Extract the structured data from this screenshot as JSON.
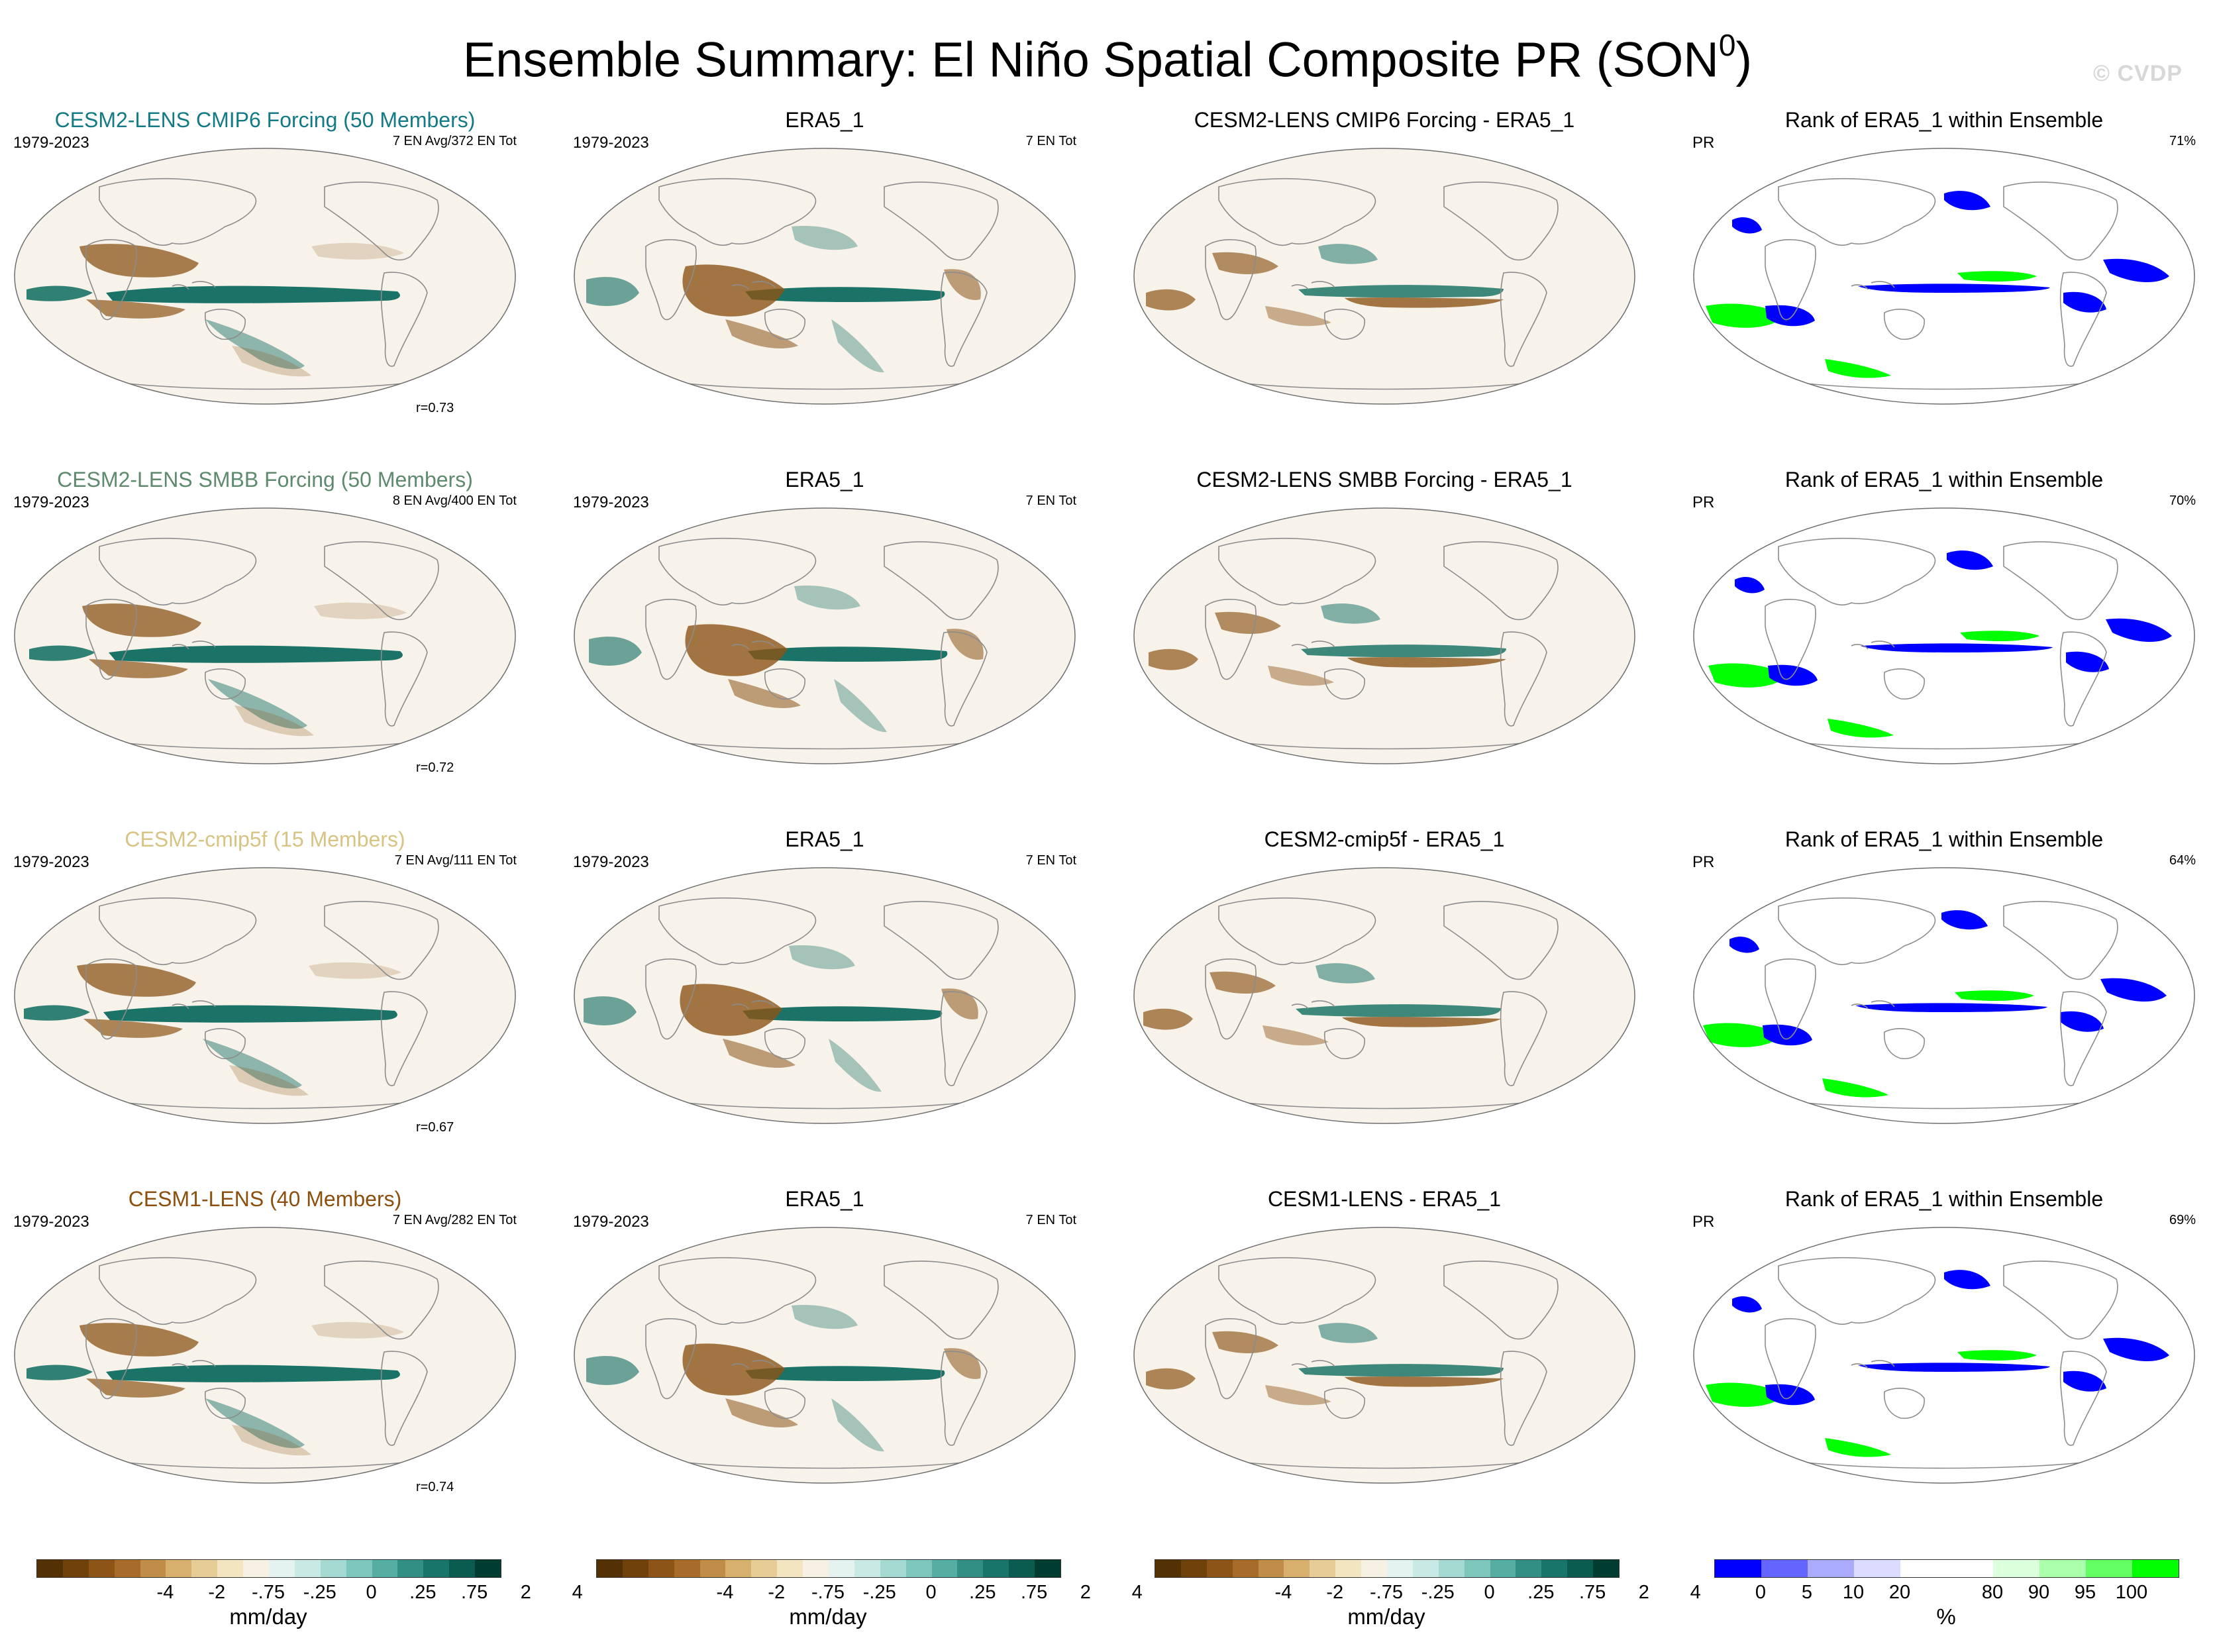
{
  "title": {
    "main": "Ensemble Summary: El Niño Spatial Composite PR (SON",
    "superscript": "0",
    "close": ")"
  },
  "watermark": "© CVDP",
  "rows": [
    {
      "ensemble": {
        "title": "CESM2-LENS CMIP6 Forcing (50 Members)",
        "title_color": "#137a86",
        "years": "1979-2023",
        "en_info": "7 EN Avg/372 EN Tot",
        "correlation": "r=0.73"
      },
      "obs": {
        "title": "ERA5_1",
        "years": "1979-2023",
        "en_info": "7 EN Tot"
      },
      "diff": {
        "title": "CESM2-LENS CMIP6 Forcing - ERA5_1"
      },
      "rank": {
        "title": "Rank of ERA5_1 within Ensemble",
        "variable": "PR",
        "percent": "71%"
      }
    },
    {
      "ensemble": {
        "title": "CESM2-LENS SMBB Forcing (50 Members)",
        "title_color": "#5e8a6e",
        "years": "1979-2023",
        "en_info": "8 EN Avg/400 EN Tot",
        "correlation": "r=0.72"
      },
      "obs": {
        "title": "ERA5_1",
        "years": "1979-2023",
        "en_info": "7 EN Tot"
      },
      "diff": {
        "title": "CESM2-LENS SMBB Forcing - ERA5_1"
      },
      "rank": {
        "title": "Rank of ERA5_1 within Ensemble",
        "variable": "PR",
        "percent": "70%"
      }
    },
    {
      "ensemble": {
        "title": "CESM2-cmip5f (15 Members)",
        "title_color": "#d7c484",
        "years": "1979-2023",
        "en_info": "7 EN Avg/111 EN Tot",
        "correlation": "r=0.67"
      },
      "obs": {
        "title": "ERA5_1",
        "years": "1979-2023",
        "en_info": "7 EN Tot"
      },
      "diff": {
        "title": "CESM2-cmip5f - ERA5_1"
      },
      "rank": {
        "title": "Rank of ERA5_1 within Ensemble",
        "variable": "PR",
        "percent": "64%"
      }
    },
    {
      "ensemble": {
        "title": "CESM1-LENS (40 Members)",
        "title_color": "#8c4f0e",
        "years": "1979-2023",
        "en_info": "7 EN Avg/282 EN Tot",
        "correlation": "r=0.74"
      },
      "obs": {
        "title": "ERA5_1",
        "years": "1979-2023",
        "en_info": "7 EN Tot"
      },
      "diff": {
        "title": "CESM1-LENS - ERA5_1"
      },
      "rank": {
        "title": "Rank of ERA5_1 within Ensemble",
        "variable": "PR",
        "percent": "69%"
      }
    }
  ],
  "colorbar_pr": {
    "colors": [
      "#543005",
      "#6f420c",
      "#8c5417",
      "#a86c2a",
      "#c08d48",
      "#d6b06c",
      "#e6cd95",
      "#f2e5c0",
      "#f6f1e2",
      "#e4f2f0",
      "#c9e9e4",
      "#a5dad2",
      "#7cc6bb",
      "#56ada1",
      "#318f84",
      "#177569",
      "#0b5c50",
      "#003c30"
    ],
    "ticks": [
      "-4",
      "-2",
      "-.75",
      "-.25",
      "0",
      ".25",
      ".75",
      "2",
      "4"
    ],
    "units": "mm/day"
  },
  "colorbar_rank": {
    "colors": [
      "#0000ff",
      "#6464ff",
      "#aaaaff",
      "#dcdcff",
      "#ffffff",
      "#ffffff",
      "#dcffdc",
      "#aaffaa",
      "#64ff64",
      "#00ff00"
    ],
    "ticks": [
      "0",
      "5",
      "10",
      "20",
      "80",
      "90",
      "95",
      "100"
    ],
    "units": "%"
  },
  "map_colors": {
    "ocean": "#f7f3ea",
    "coast": "#8c8c8c",
    "wet": "#0e6b5f",
    "dry": "#8c5417",
    "rank_low": "#0000ff",
    "rank_high": "#00ff00"
  }
}
